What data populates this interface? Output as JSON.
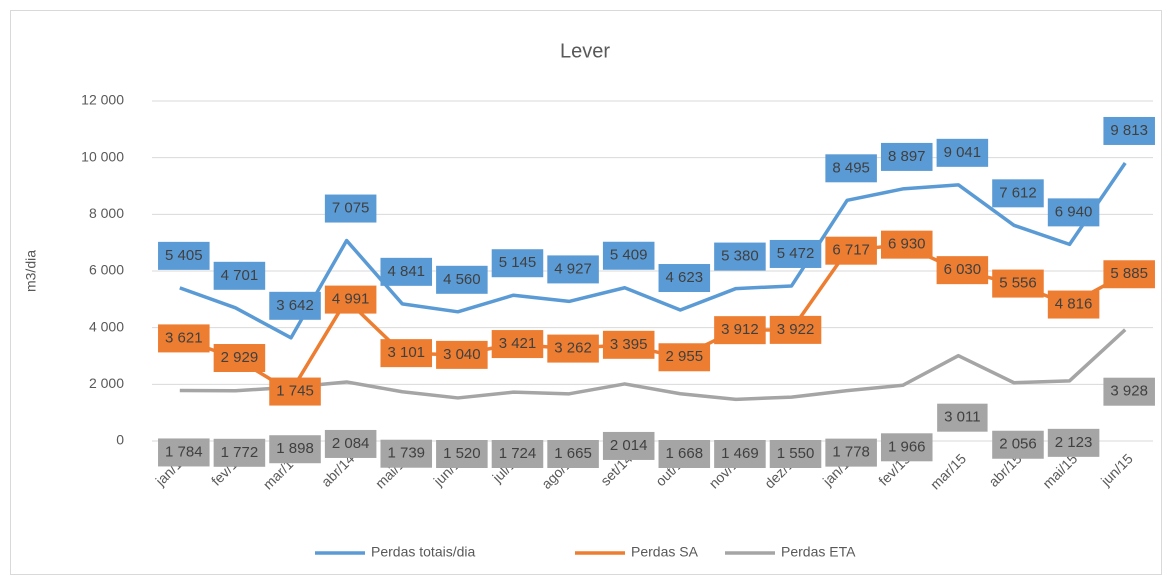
{
  "chart_data": {
    "type": "line",
    "title": "Lever",
    "y_label": "m3/dia",
    "categories": [
      "jan/14",
      "fev/14",
      "mar/14",
      "abr/14",
      "mai/14",
      "jun/14",
      "jul/14",
      "ago/14",
      "set/14",
      "out/14",
      "nov/14",
      "dez/14",
      "jan/15",
      "fev/15",
      "mar/15",
      "abr/15",
      "mai/15",
      "jun/15"
    ],
    "series": [
      {
        "name": "Perdas totais/dia",
        "color": "#5b9bd5",
        "values": [
          5405,
          4701,
          3642,
          7075,
          4841,
          4560,
          5145,
          4927,
          5409,
          4623,
          5380,
          5472,
          8495,
          8897,
          9041,
          7612,
          6940,
          9813
        ],
        "value_labels": [
          "5 405",
          "4 701",
          "3 642",
          "7 075",
          "4 841",
          "4 560",
          "5 145",
          "4 927",
          "5 409",
          "4 623",
          "5 380",
          "5 472",
          "8 495",
          "8 897",
          "9 041",
          "7 612",
          "6 940",
          "9 813"
        ]
      },
      {
        "name": "Perdas SA",
        "color": "#ed7d31",
        "values": [
          3621,
          2929,
          1745,
          4991,
          3101,
          3040,
          3421,
          3262,
          3395,
          2955,
          3912,
          3922,
          6717,
          6930,
          6030,
          5556,
          4816,
          5885
        ],
        "value_labels": [
          "3 621",
          "2 929",
          "1 745",
          "4 991",
          "3 101",
          "3 040",
          "3 421",
          "3 262",
          "3 395",
          "2 955",
          "3 912",
          "3 922",
          "6 717",
          "6 930",
          "6 030",
          "5 556",
          "4 816",
          "5 885"
        ]
      },
      {
        "name": "Perdas ETA",
        "color": "#a5a5a5",
        "values": [
          1784,
          1772,
          1898,
          2084,
          1739,
          1520,
          1724,
          1665,
          2014,
          1668,
          1469,
          1550,
          1778,
          1966,
          3011,
          2056,
          2123,
          3928
        ],
        "value_labels": [
          "1 784",
          "1 772",
          "1 898",
          "2 084",
          "1 739",
          "1 520",
          "1 724",
          "1 665",
          "2 014",
          "1 668",
          "1 469",
          "1 550",
          "1 778",
          "1 966",
          "3 011",
          "2 056",
          "2 123",
          "3 928"
        ]
      }
    ],
    "ylim": [
      0,
      12000
    ],
    "yticks": [
      0,
      {
        "value": 2000,
        "label": "2 000"
      },
      {
        "value": 4000,
        "label": "4 000"
      },
      {
        "value": 6000,
        "label": "6 000"
      },
      {
        "value": 8000,
        "label": "8 000"
      },
      {
        "value": 10000,
        "label": "10 000"
      },
      {
        "value": 12000,
        "label": "12 000"
      }
    ],
    "grid": true,
    "legend": "bottom"
  }
}
